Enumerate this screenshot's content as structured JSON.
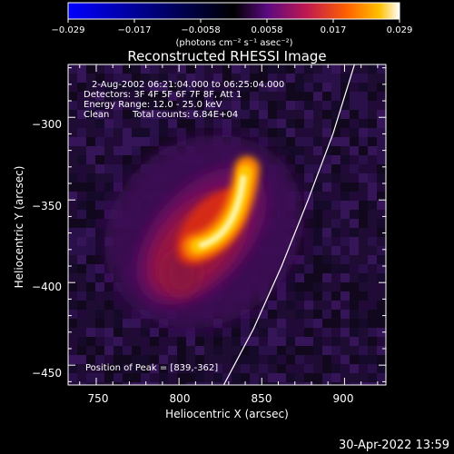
{
  "colorbar": {
    "ticks": [
      "−0.029",
      "−0.017",
      "−0.0058",
      "0.0058",
      "0.017",
      "0.029"
    ],
    "unit_label": "(photons cm⁻² s⁻¹ asec⁻²)"
  },
  "chart_data": {
    "type": "heatmap",
    "title": "Reconstructed RHESSI Image",
    "xlabel": "Heliocentric X (arcsec)",
    "ylabel": "Heliocentric Y (arcsec)",
    "xlim": [
      733,
      925
    ],
    "ylim": [
      -462,
      -268
    ],
    "x_ticks": [
      750,
      800,
      850,
      900
    ],
    "y_ticks": [
      -300,
      -350,
      -400,
      -450
    ],
    "y_tick_labels": [
      "−300",
      "−350",
      "−400",
      "−450"
    ],
    "value_range": [
      -0.029,
      0.029
    ],
    "colormap": [
      "#0000ff",
      "#000000",
      "#5a0a80",
      "#c01850",
      "#ff6000",
      "#ffc000",
      "#ffffff"
    ],
    "peak_position": [
      839,
      -362
    ],
    "limb_curve": [
      [
        827,
        -462
      ],
      [
        845,
        -428
      ],
      [
        862,
        -390
      ],
      [
        878,
        -350
      ],
      [
        893,
        -310
      ],
      [
        906,
        -268
      ]
    ],
    "annotations": {
      "time": "2-Aug-2002 06:21:04.000 to 06:25:04.000",
      "detectors": "Detectors: 3F 4F 5F 6F 7F 8F, Att 1",
      "energy": "Energy Range: 12.0 - 25.0 keV",
      "method": "Clean",
      "counts": "Total counts: 6.84E+04",
      "peak": "Position of Peak = [839,-362]"
    }
  },
  "footer": {
    "timestamp": "30-Apr-2022 13:59"
  }
}
